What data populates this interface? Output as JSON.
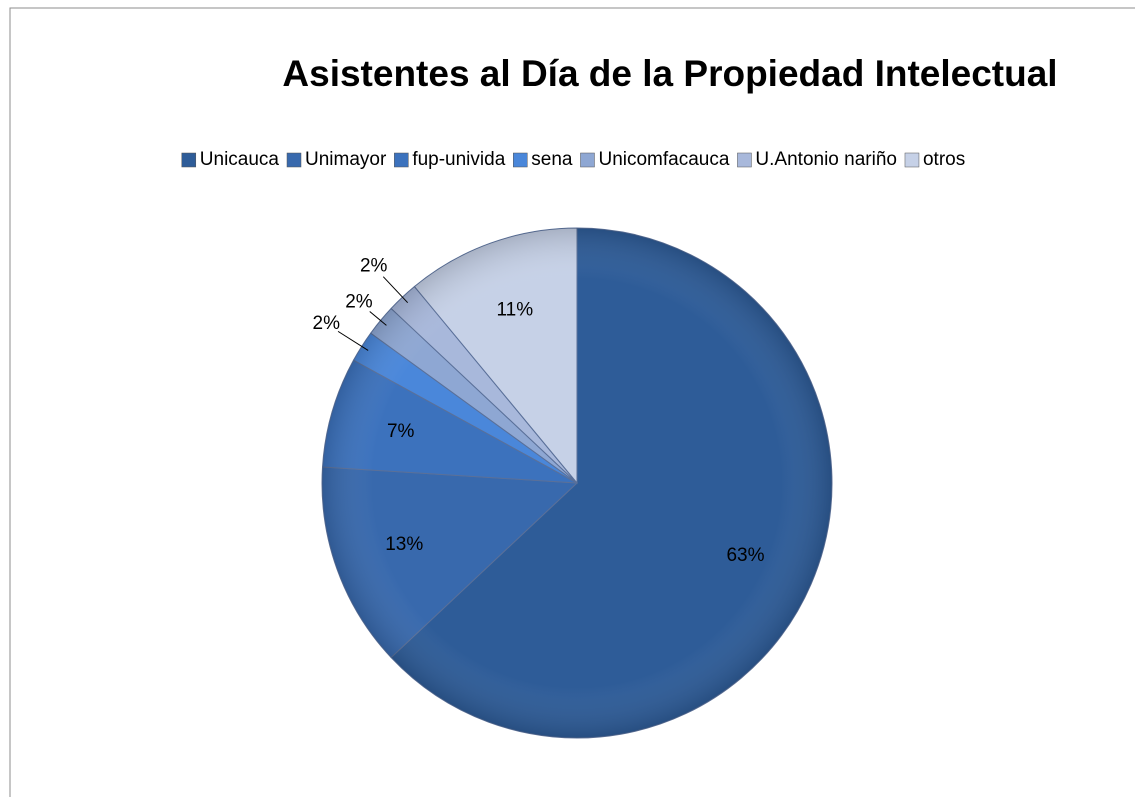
{
  "chart_data": {
    "type": "pie",
    "title": "Asistentes al Día de la Propiedad Intelectual",
    "categories": [
      "Unicauca",
      "Unimayor",
      "fup-univida",
      "sena",
      "Unicomfacauca",
      "U.Antonio nariño",
      "otros"
    ],
    "values": [
      63,
      13,
      7,
      2,
      2,
      2,
      11
    ],
    "value_labels": [
      "63%",
      "13%",
      "7%",
      "2%",
      "2%",
      "2%",
      "11%"
    ],
    "colors": [
      "#2e5c98",
      "#3869ad",
      "#3c72bd",
      "#4a87da",
      "#8ea7d3",
      "#a8b8db",
      "#c6d1e7"
    ],
    "legend": "top"
  }
}
